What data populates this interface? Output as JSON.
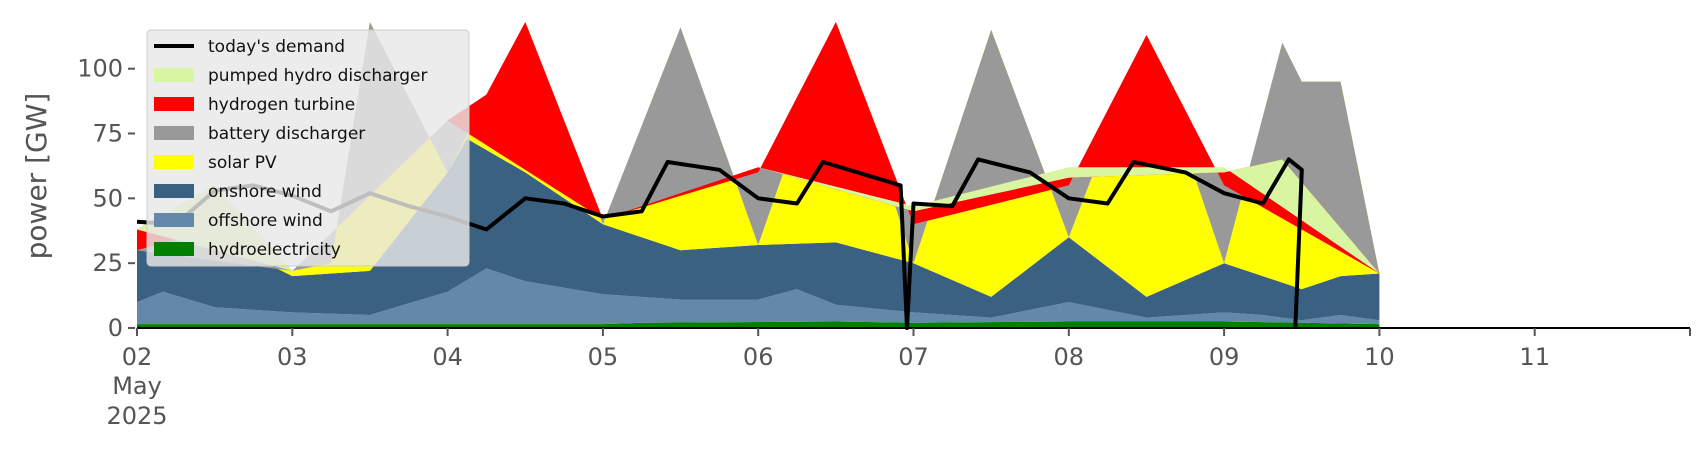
{
  "chart_data": {
    "type": "area",
    "ylabel": "power [GW]",
    "ylim": [
      0,
      118
    ],
    "yticks": [
      0,
      25,
      50,
      75,
      100
    ],
    "x_start": "2025-05-02",
    "x_end": "2025-05-12",
    "xticks": [
      {
        "date": "2025-05-02",
        "label": "02",
        "sub1": "May",
        "sub2": "2025"
      },
      {
        "date": "2025-05-03",
        "label": "03"
      },
      {
        "date": "2025-05-04",
        "label": "04"
      },
      {
        "date": "2025-05-05",
        "label": "05"
      },
      {
        "date": "2025-05-06",
        "label": "06"
      },
      {
        "date": "2025-05-07",
        "label": "07"
      },
      {
        "date": "2025-05-08",
        "label": "08"
      },
      {
        "date": "2025-05-09",
        "label": "09"
      },
      {
        "date": "2025-05-10",
        "label": "10"
      },
      {
        "date": "2025-05-11",
        "label": "11"
      }
    ],
    "legend_position": "upper-left",
    "legend": [
      {
        "label": "today's demand",
        "kind": "line",
        "color": "#000000"
      },
      {
        "label": "pumped hydro discharger",
        "kind": "patch",
        "color": "#d8f5a2"
      },
      {
        "label": "hydrogen turbine",
        "kind": "patch",
        "color": "#ff0000"
      },
      {
        "label": "battery discharger",
        "kind": "patch",
        "color": "#999999"
      },
      {
        "label": "solar PV",
        "kind": "patch",
        "color": "#ffff00"
      },
      {
        "label": "onshore wind",
        "kind": "patch",
        "color": "#3b6182"
      },
      {
        "label": "offshore wind",
        "kind": "patch",
        "color": "#6488aa"
      },
      {
        "label": "hydroelectricity",
        "kind": "patch",
        "color": "#008000"
      }
    ],
    "series": [
      {
        "name": "hydroelectricity",
        "color": "#008000",
        "points": [
          [
            "2025-05-02 00:00",
            1.5
          ],
          [
            "2025-05-03 12:00",
            1.5
          ],
          [
            "2025-05-05 00:00",
            1.5
          ],
          [
            "2025-05-05 06:00",
            2
          ],
          [
            "2025-05-06 12:00",
            2.5
          ],
          [
            "2025-05-07 00:00",
            2
          ],
          [
            "2025-05-08 00:00",
            2.5
          ],
          [
            "2025-05-09 00:00",
            2.5
          ],
          [
            "2025-05-09 12:00",
            2
          ],
          [
            "2025-05-10 00:00",
            1.5
          ]
        ]
      },
      {
        "name": "offshore wind",
        "color": "#6488aa",
        "points": [
          [
            "2025-05-02 00:00",
            10
          ],
          [
            "2025-05-02 04:00",
            14
          ],
          [
            "2025-05-02 12:00",
            8
          ],
          [
            "2025-05-03 00:00",
            6
          ],
          [
            "2025-05-03 12:00",
            5
          ],
          [
            "2025-05-04 00:00",
            14
          ],
          [
            "2025-05-04 06:00",
            23
          ],
          [
            "2025-05-04 12:00",
            18
          ],
          [
            "2025-05-05 00:00",
            13
          ],
          [
            "2025-05-05 12:00",
            11
          ],
          [
            "2025-05-06 00:00",
            11
          ],
          [
            "2025-05-06 06:00",
            15
          ],
          [
            "2025-05-06 12:00",
            9
          ],
          [
            "2025-05-07 00:00",
            6
          ],
          [
            "2025-05-07 12:00",
            4
          ],
          [
            "2025-05-08 00:00",
            10
          ],
          [
            "2025-05-08 12:00",
            4
          ],
          [
            "2025-05-09 00:00",
            6
          ],
          [
            "2025-05-09 06:00",
            5
          ],
          [
            "2025-05-09 12:00",
            3
          ],
          [
            "2025-05-09 18:00",
            5
          ],
          [
            "2025-05-10 00:00",
            3
          ]
        ]
      },
      {
        "name": "onshore wind",
        "color": "#3b6182",
        "points": [
          [
            "2025-05-02 00:00",
            30
          ],
          [
            "2025-05-02 12:00",
            35
          ],
          [
            "2025-05-03 00:00",
            20
          ],
          [
            "2025-05-03 12:00",
            22
          ],
          [
            "2025-05-04 00:00",
            60
          ],
          [
            "2025-05-04 03:00",
            73
          ],
          [
            "2025-05-04 12:00",
            60
          ],
          [
            "2025-05-05 00:00",
            40
          ],
          [
            "2025-05-05 12:00",
            30
          ],
          [
            "2025-05-06 00:00",
            32
          ],
          [
            "2025-05-06 12:00",
            33
          ],
          [
            "2025-05-07 00:00",
            25
          ],
          [
            "2025-05-07 12:00",
            12
          ],
          [
            "2025-05-08 00:00",
            35
          ],
          [
            "2025-05-08 12:00",
            12
          ],
          [
            "2025-05-09 00:00",
            25
          ],
          [
            "2025-05-09 12:00",
            15
          ],
          [
            "2025-05-09 18:00",
            20
          ],
          [
            "2025-05-10 00:00",
            21
          ]
        ]
      },
      {
        "name": "solar PV",
        "color": "#ffff00",
        "points": [
          [
            "2025-05-02 00:00",
            30
          ],
          [
            "2025-05-03 00:00",
            22
          ],
          [
            "2025-05-03 06:00",
            25
          ],
          [
            "2025-05-03 12:00",
            118
          ],
          [
            "2025-05-04 00:00",
            60
          ],
          [
            "2025-05-04 12:00",
            118
          ],
          [
            "2025-05-05 00:00",
            40
          ],
          [
            "2025-05-05 12:00",
            116
          ],
          [
            "2025-05-06 00:00",
            32
          ],
          [
            "2025-05-06 12:00",
            118
          ],
          [
            "2025-05-07 00:00",
            25
          ],
          [
            "2025-05-07 12:00",
            115
          ],
          [
            "2025-05-08 00:00",
            35
          ],
          [
            "2025-05-08 12:00",
            113
          ],
          [
            "2025-05-09 00:00",
            25
          ],
          [
            "2025-05-09 09:00",
            110
          ],
          [
            "2025-05-09 12:00",
            95
          ],
          [
            "2025-05-09 18:00",
            95
          ],
          [
            "2025-05-10 00:00",
            21
          ]
        ]
      },
      {
        "name": "battery discharger",
        "color": "#999999",
        "points": [
          [
            "2025-05-02 00:00",
            30
          ],
          [
            "2025-05-02 12:00",
            38
          ],
          [
            "2025-05-03 00:00",
            22
          ],
          [
            "2025-05-04 00:00",
            80
          ],
          [
            "2025-05-04 06:00",
            90
          ],
          [
            "2025-05-04 12:00",
            118
          ],
          [
            "2025-05-05 00:00",
            42
          ],
          [
            "2025-05-06 00:00",
            60
          ],
          [
            "2025-05-06 12:00",
            118
          ],
          [
            "2025-05-07 00:00",
            40
          ],
          [
            "2025-05-08 00:00",
            55
          ],
          [
            "2025-05-08 12:00",
            113
          ],
          [
            "2025-05-09 00:00",
            55
          ],
          [
            "2025-05-10 00:00",
            21
          ]
        ]
      },
      {
        "name": "hydrogen turbine",
        "color": "#ff0000",
        "points": [
          [
            "2025-05-02 00:00",
            38
          ],
          [
            "2025-05-02 12:00",
            55
          ],
          [
            "2025-05-03 00:00",
            22
          ],
          [
            "2025-05-04 00:00",
            80
          ],
          [
            "2025-05-05 00:00",
            42
          ],
          [
            "2025-05-06 00:00",
            62
          ],
          [
            "2025-05-07 00:00",
            45
          ],
          [
            "2025-05-08 00:00",
            58
          ],
          [
            "2025-05-09 00:00",
            60
          ],
          [
            "2025-05-09 09:00",
            65
          ],
          [
            "2025-05-10 00:00",
            21
          ]
        ]
      },
      {
        "name": "pumped hydro discharger",
        "color": "#d8f5a2",
        "points": [
          [
            "2025-05-02 00:00",
            38
          ],
          [
            "2025-05-03 00:00",
            22
          ],
          [
            "2025-05-04 00:00",
            80
          ],
          [
            "2025-05-05 00:00",
            42
          ],
          [
            "2025-05-06 00:00",
            62
          ],
          [
            "2025-05-07 00:00",
            47
          ],
          [
            "2025-05-08 00:00",
            62
          ],
          [
            "2025-05-09 00:00",
            62
          ],
          [
            "2025-05-10 00:00",
            21
          ]
        ]
      }
    ],
    "demand": {
      "name": "today's demand",
      "color": "#000000",
      "points": [
        [
          "2025-05-02 00:00",
          41
        ],
        [
          "2025-05-02 06:00",
          40
        ],
        [
          "2025-05-02 12:00",
          53
        ],
        [
          "2025-05-02 18:00",
          55
        ],
        [
          "2025-05-03 00:00",
          51
        ],
        [
          "2025-05-03 06:00",
          45
        ],
        [
          "2025-05-03 12:00",
          52
        ],
        [
          "2025-05-03 18:00",
          47
        ],
        [
          "2025-05-04 00:00",
          43
        ],
        [
          "2025-05-04 06:00",
          38
        ],
        [
          "2025-05-04 12:00",
          50
        ],
        [
          "2025-05-04 18:00",
          48
        ],
        [
          "2025-05-05 00:00",
          43
        ],
        [
          "2025-05-05 06:00",
          45
        ],
        [
          "2025-05-05 10:00",
          64
        ],
        [
          "2025-05-05 18:00",
          61
        ],
        [
          "2025-05-06 00:00",
          50
        ],
        [
          "2025-05-06 06:00",
          48
        ],
        [
          "2025-05-06 10:00",
          64
        ],
        [
          "2025-05-06 18:00",
          58
        ],
        [
          "2025-05-06 22:00",
          55
        ],
        [
          "2025-05-06 23:00",
          0
        ],
        [
          "2025-05-07 00:00",
          48
        ],
        [
          "2025-05-07 06:00",
          47
        ],
        [
          "2025-05-07 10:00",
          65
        ],
        [
          "2025-05-07 18:00",
          60
        ],
        [
          "2025-05-08 00:00",
          50
        ],
        [
          "2025-05-08 06:00",
          48
        ],
        [
          "2025-05-08 10:00",
          64
        ],
        [
          "2025-05-08 18:00",
          60
        ],
        [
          "2025-05-09 00:00",
          52
        ],
        [
          "2025-05-09 06:00",
          48
        ],
        [
          "2025-05-09 10:00",
          65
        ],
        [
          "2025-05-09 12:00",
          61
        ],
        [
          "2025-05-09 11:00",
          0
        ]
      ]
    }
  }
}
